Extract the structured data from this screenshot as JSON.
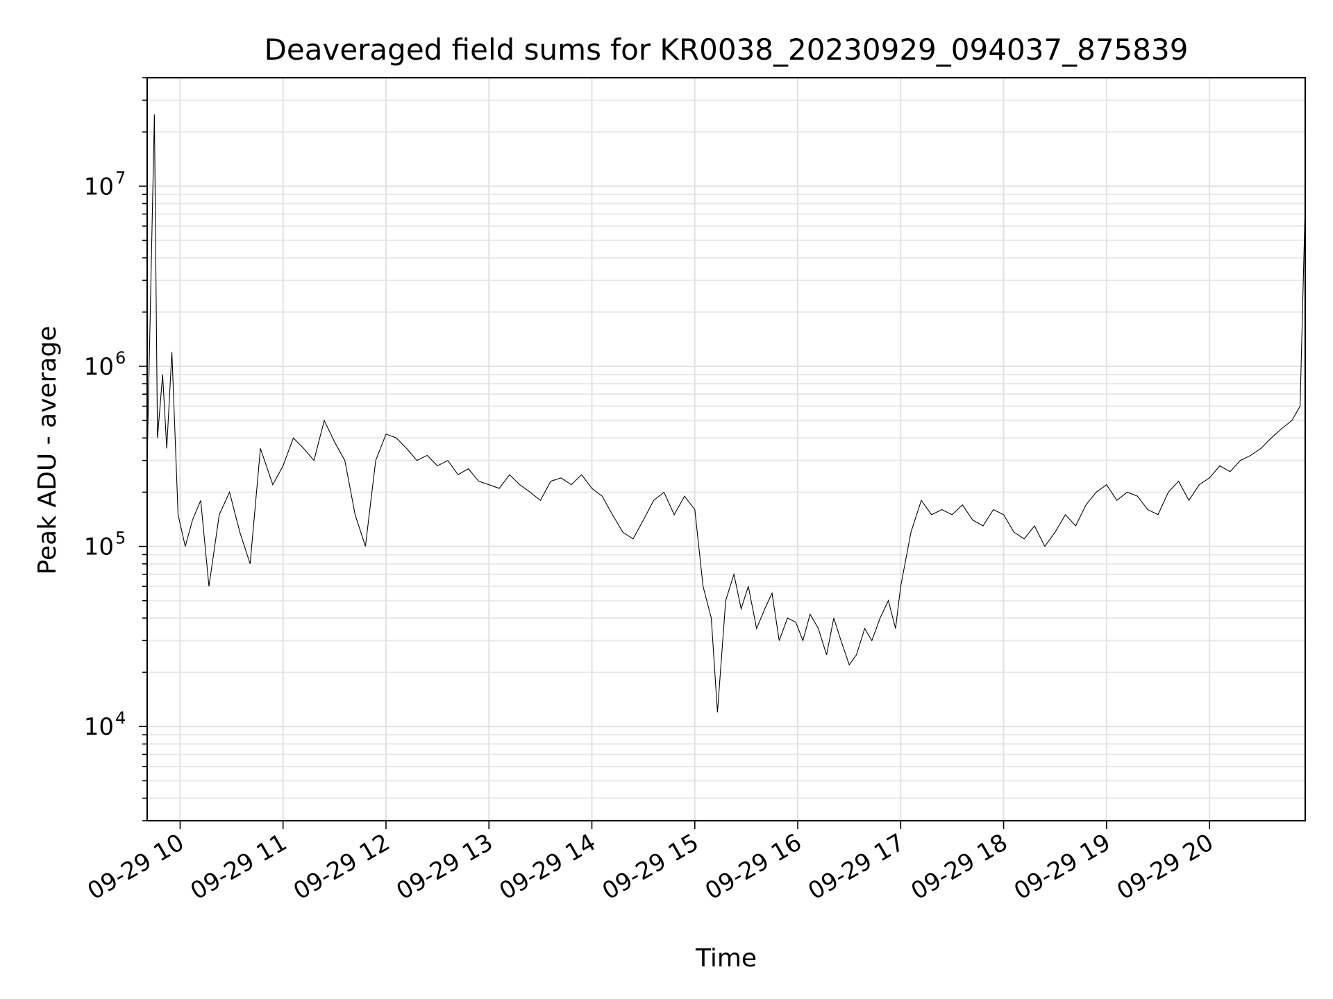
{
  "chart_data": {
    "type": "line",
    "title": "Deaveraged field sums for KR0038_20230929_094037_875839",
    "xlabel": "Time",
    "ylabel": "Peak ADU - average",
    "yscale": "log",
    "grid": true,
    "legend": "none",
    "xlim_hours": [
      9.68,
      20.93
    ],
    "ylim": [
      3000,
      40000000
    ],
    "x_ticks": [
      {
        "hour": 10,
        "label": "09-29 10"
      },
      {
        "hour": 11,
        "label": "09-29 11"
      },
      {
        "hour": 12,
        "label": "09-29 12"
      },
      {
        "hour": 13,
        "label": "09-29 13"
      },
      {
        "hour": 14,
        "label": "09-29 14"
      },
      {
        "hour": 15,
        "label": "09-29 15"
      },
      {
        "hour": 16,
        "label": "09-29 16"
      },
      {
        "hour": 17,
        "label": "09-29 17"
      },
      {
        "hour": 18,
        "label": "09-29 18"
      },
      {
        "hour": 19,
        "label": "09-29 19"
      },
      {
        "hour": 20,
        "label": "09-29 20"
      }
    ],
    "y_ticks": [
      {
        "value": 10000,
        "base": "10",
        "exp": "4"
      },
      {
        "value": 100000,
        "base": "10",
        "exp": "5"
      },
      {
        "value": 1000000,
        "base": "10",
        "exp": "6"
      },
      {
        "value": 10000000,
        "base": "10",
        "exp": "7"
      }
    ],
    "series": [
      {
        "color": "#000000",
        "x_hours": [
          9.68,
          9.75,
          9.78,
          9.83,
          9.87,
          9.92,
          9.98,
          10.05,
          10.12,
          10.2,
          10.28,
          10.38,
          10.48,
          10.58,
          10.68,
          10.78,
          10.9,
          11.0,
          11.1,
          11.2,
          11.3,
          11.4,
          11.5,
          11.6,
          11.7,
          11.8,
          11.9,
          12.0,
          12.1,
          12.2,
          12.3,
          12.4,
          12.5,
          12.6,
          12.7,
          12.8,
          12.9,
          13.0,
          13.1,
          13.2,
          13.3,
          13.4,
          13.5,
          13.6,
          13.7,
          13.8,
          13.9,
          14.0,
          14.1,
          14.2,
          14.3,
          14.4,
          14.5,
          14.6,
          14.7,
          14.8,
          14.9,
          15.0,
          15.08,
          15.16,
          15.22,
          15.3,
          15.38,
          15.45,
          15.52,
          15.6,
          15.68,
          15.75,
          15.82,
          15.9,
          15.98,
          16.05,
          16.12,
          16.2,
          16.28,
          16.35,
          16.42,
          16.5,
          16.57,
          16.65,
          16.72,
          16.8,
          16.88,
          16.95,
          17.0,
          17.1,
          17.2,
          17.3,
          17.4,
          17.5,
          17.6,
          17.7,
          17.8,
          17.9,
          18.0,
          18.1,
          18.2,
          18.3,
          18.4,
          18.5,
          18.6,
          18.7,
          18.8,
          18.9,
          19.0,
          19.1,
          19.2,
          19.3,
          19.4,
          19.5,
          19.6,
          19.7,
          19.8,
          19.9,
          20.0,
          20.1,
          20.2,
          20.3,
          20.4,
          20.5,
          20.6,
          20.7,
          20.8,
          20.88,
          20.93
        ],
        "values": [
          300000,
          25000000,
          400000,
          900000,
          350000,
          1200000,
          150000,
          100000,
          140000,
          180000,
          60000,
          150000,
          200000,
          120000,
          80000,
          350000,
          220000,
          280000,
          400000,
          350000,
          300000,
          500000,
          380000,
          300000,
          150000,
          100000,
          300000,
          420000,
          400000,
          350000,
          300000,
          320000,
          280000,
          300000,
          250000,
          270000,
          230000,
          220000,
          210000,
          250000,
          220000,
          200000,
          180000,
          230000,
          240000,
          220000,
          250000,
          210000,
          190000,
          150000,
          120000,
          110000,
          140000,
          180000,
          200000,
          150000,
          190000,
          160000,
          60000,
          40000,
          12000,
          50000,
          70000,
          45000,
          60000,
          35000,
          45000,
          55000,
          30000,
          40000,
          38000,
          30000,
          42000,
          35000,
          25000,
          40000,
          30000,
          22000,
          25000,
          35000,
          30000,
          40000,
          50000,
          35000,
          60000,
          120000,
          180000,
          150000,
          160000,
          150000,
          170000,
          140000,
          130000,
          160000,
          150000,
          120000,
          110000,
          130000,
          100000,
          120000,
          150000,
          130000,
          170000,
          200000,
          220000,
          180000,
          200000,
          190000,
          160000,
          150000,
          200000,
          230000,
          180000,
          220000,
          240000,
          280000,
          260000,
          300000,
          320000,
          350000,
          400000,
          450000,
          500000,
          600000,
          8000000
        ]
      }
    ]
  }
}
